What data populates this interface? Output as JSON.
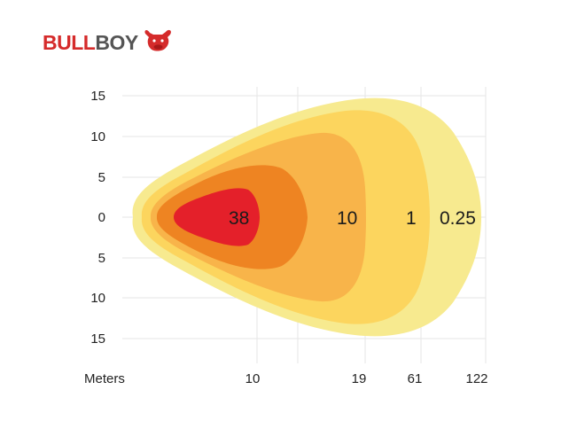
{
  "brand": {
    "name_part1": "BULL",
    "name_part2": "BOY",
    "color_bull": "#d52b2b",
    "color_boy": "#555555",
    "icon": "bull-head-icon"
  },
  "chart_data": {
    "type": "heatmap",
    "title": "",
    "xlabel": "Meters",
    "ylabel": "",
    "x_ticks": [
      "10",
      "19",
      "61",
      "122"
    ],
    "y_ticks": [
      "15",
      "10",
      "5",
      "0",
      "5",
      "10",
      "15"
    ],
    "ylim": [
      -15,
      15
    ],
    "grid": true,
    "isolux_levels": [
      {
        "label": "0.25",
        "reach_m": 122,
        "color": "#f7ea8f"
      },
      {
        "label": "1",
        "reach_m": 61,
        "color": "#fcd55e"
      },
      {
        "label": "10",
        "reach_m": 19,
        "color": "#f8b44a"
      },
      {
        "label": "38",
        "reach_m": 10,
        "color": "#e4202a"
      }
    ],
    "band_colors": [
      "#f7ea8f",
      "#fcd55e",
      "#f8b44a",
      "#ee8422",
      "#e4202a"
    ]
  }
}
